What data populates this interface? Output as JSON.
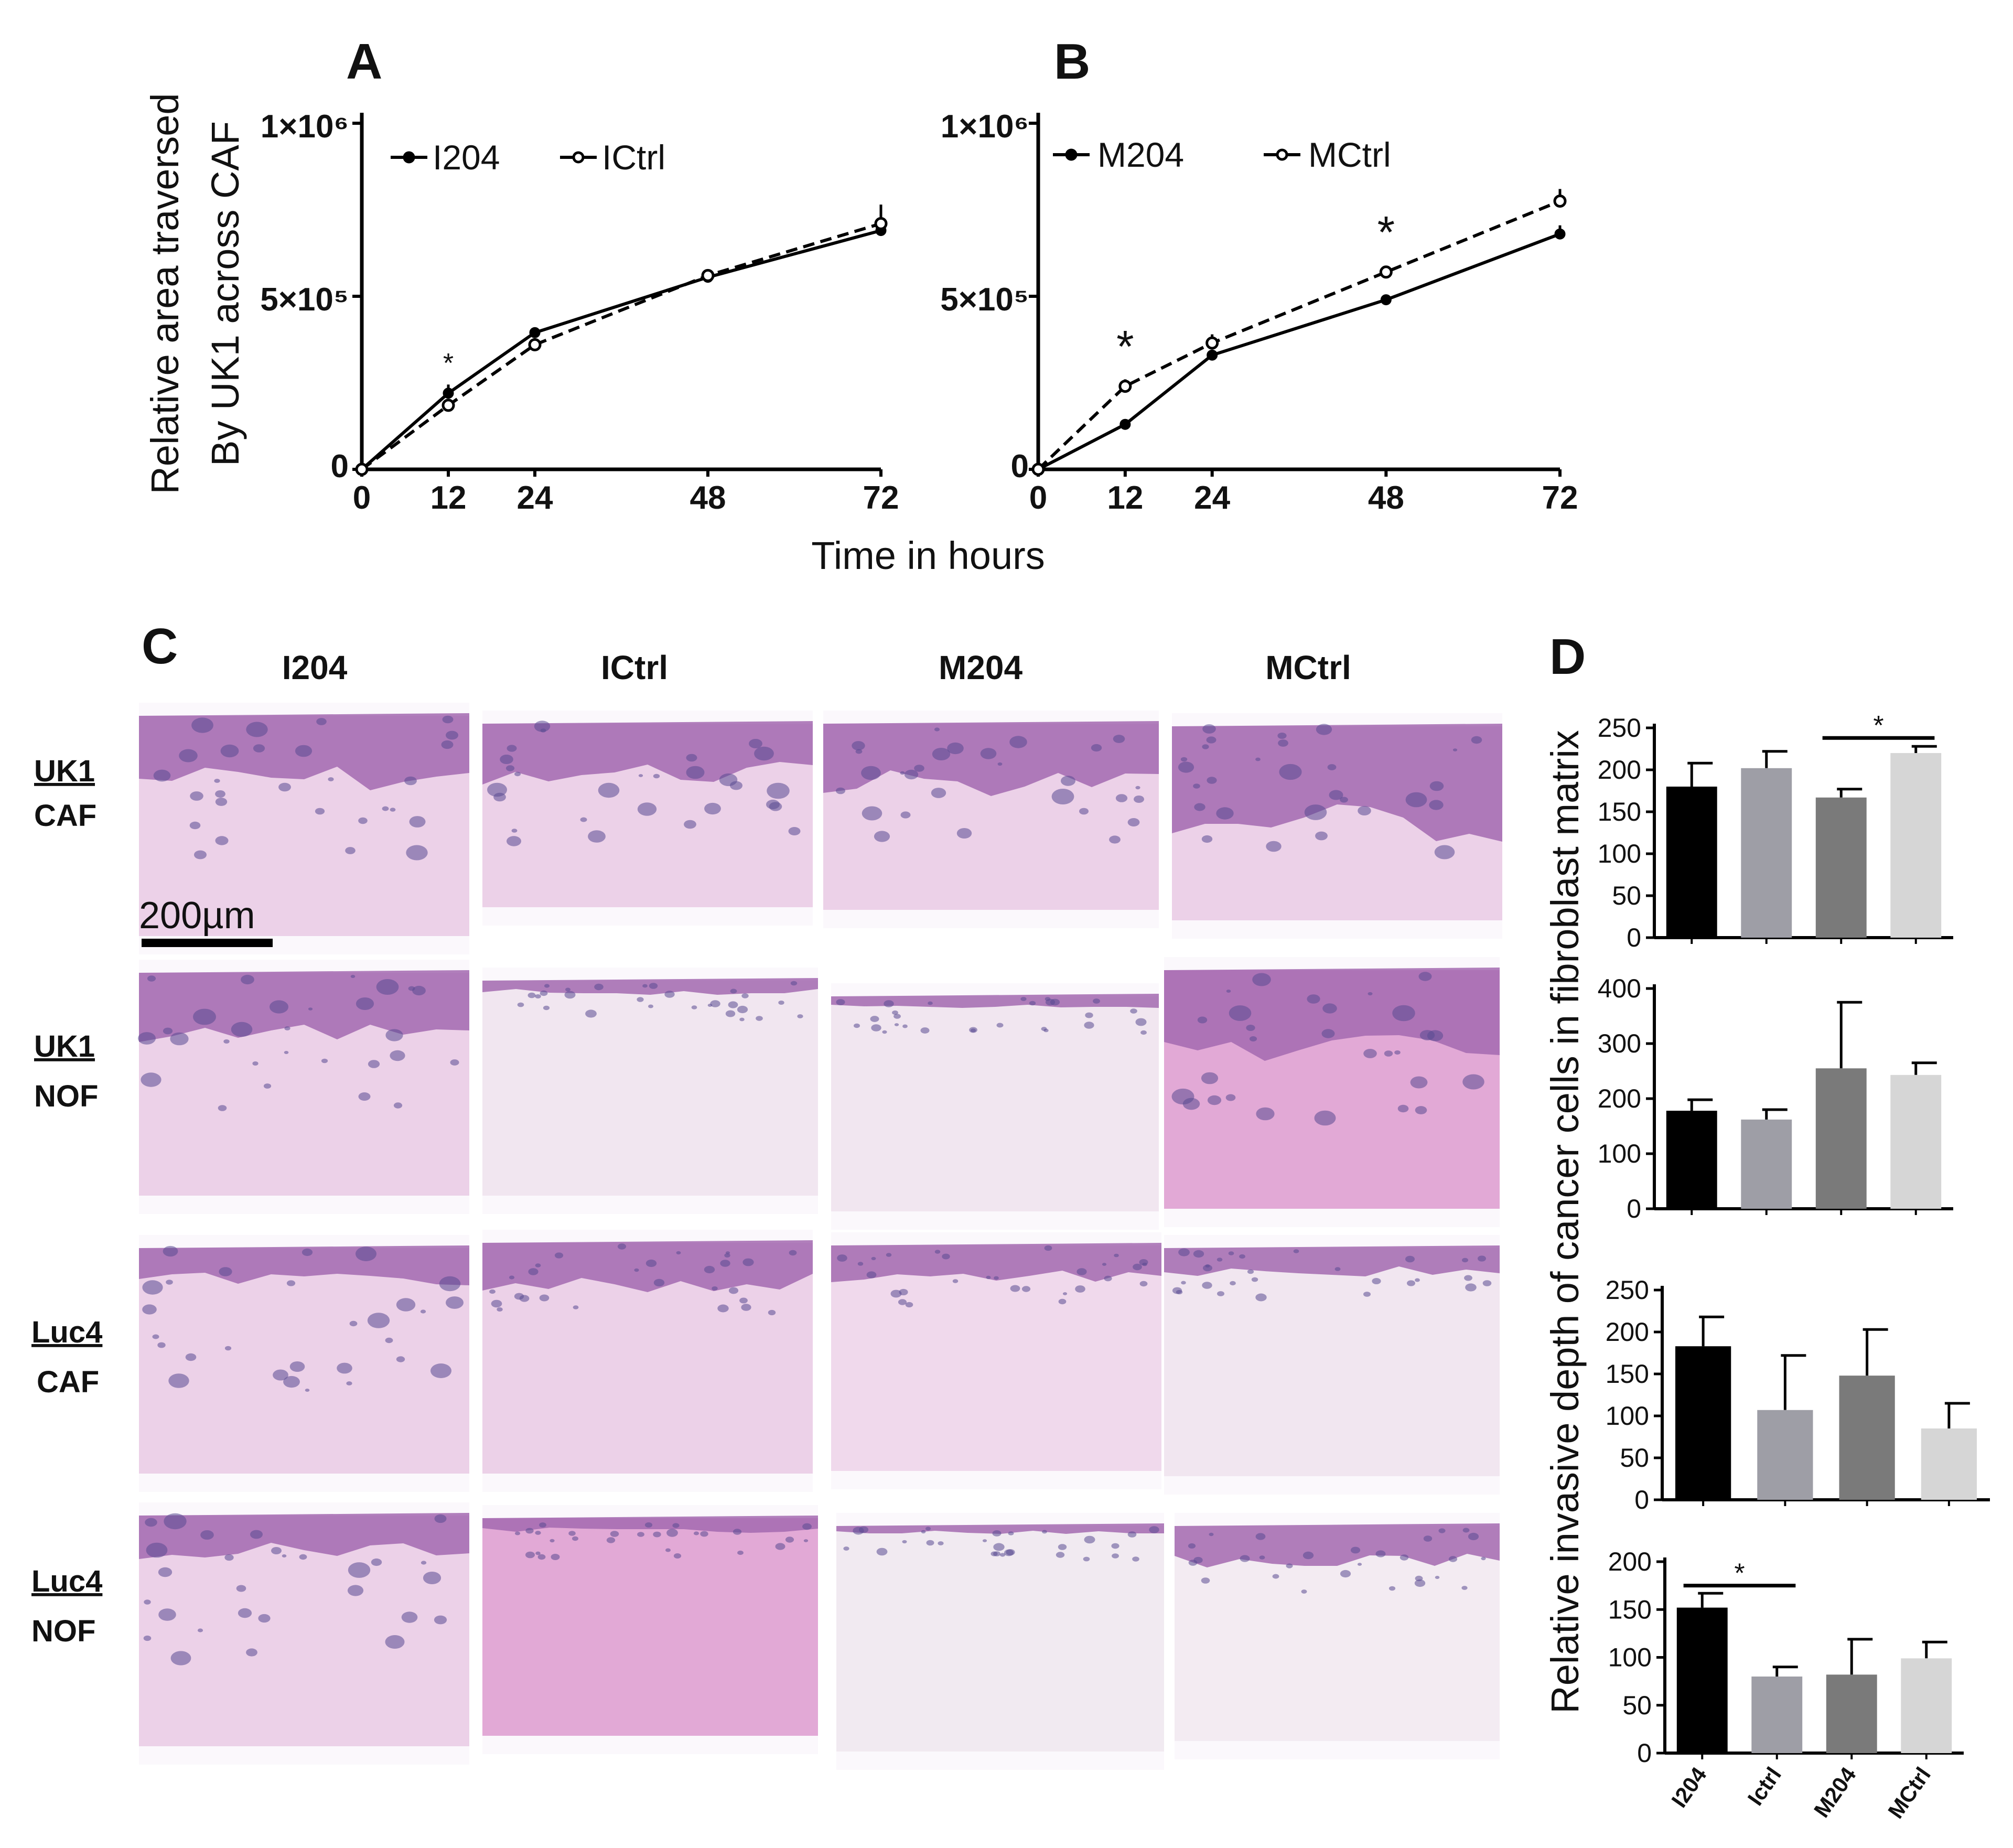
{
  "panel_letters": {
    "a": "A",
    "b": "B",
    "c": "C",
    "d": "D"
  },
  "chart_data": [
    {
      "id": "A",
      "type": "line",
      "ylabel_line1": "Relative area traversed",
      "ylabel_line2": "By UK1 across CAF",
      "xlabel": "Time in hours",
      "x": [
        0,
        12,
        24,
        48,
        72
      ],
      "x_ticks": [
        "0",
        "12",
        "24",
        "48",
        "72"
      ],
      "y_ticks": [
        "0",
        "5×10⁵",
        "1×10⁶"
      ],
      "ylim": [
        0,
        1000000
      ],
      "legend_placement": "top-left",
      "series": [
        {
          "name": "I204",
          "values": [
            0,
            220000,
            395000,
            555000,
            690000
          ],
          "errors": [
            0,
            25000,
            12000,
            12000,
            12000
          ],
          "style": "solid",
          "marker": "filled"
        },
        {
          "name": "ICtrl",
          "values": [
            0,
            185000,
            360000,
            560000,
            710000
          ],
          "errors": [
            0,
            18000,
            15000,
            14000,
            55000
          ],
          "style": "dashed",
          "marker": "open"
        }
      ],
      "annotations": [
        {
          "x": 12,
          "y": 280000,
          "text": "*"
        }
      ]
    },
    {
      "id": "B",
      "type": "line",
      "x": [
        0,
        12,
        24,
        48,
        72
      ],
      "x_ticks": [
        "0",
        "12",
        "24",
        "48",
        "72"
      ],
      "y_ticks": [
        "0",
        "5×10⁵",
        "1×10⁶"
      ],
      "ylim": [
        0,
        1000000
      ],
      "legend_placement": "top-left",
      "series": [
        {
          "name": "M204",
          "values": [
            0,
            130000,
            330000,
            490000,
            680000
          ],
          "errors": [
            0,
            8000,
            8000,
            8000,
            25000
          ],
          "style": "solid",
          "marker": "filled"
        },
        {
          "name": "MCtrl",
          "values": [
            0,
            240000,
            365000,
            570000,
            775000
          ],
          "errors": [
            0,
            20000,
            25000,
            12000,
            35000
          ],
          "style": "dashed",
          "marker": "open"
        }
      ],
      "annotations": [
        {
          "x": 12,
          "y": 310000,
          "text": "*"
        },
        {
          "x": 48,
          "y": 640000,
          "text": "*"
        }
      ]
    },
    {
      "id": "D1",
      "type": "bar",
      "categories": [
        "I204",
        "ICtrl",
        "M204",
        "MCtrl"
      ],
      "values": [
        180,
        202,
        167,
        220
      ],
      "errors": [
        28,
        20,
        10,
        8
      ],
      "colors": [
        "#000000",
        "#9e9ea6",
        "#7a7a7a",
        "#d6d6d6"
      ],
      "ylim": [
        0,
        250
      ],
      "y_ticks": [
        0,
        50,
        100,
        150,
        200,
        250
      ],
      "significance": [
        {
          "from": 2,
          "to": 3,
          "text": "*"
        }
      ]
    },
    {
      "id": "D2",
      "type": "bar",
      "categories": [
        "I204",
        "ICtrl",
        "M204",
        "MCtrl"
      ],
      "values": [
        178,
        162,
        255,
        243
      ],
      "errors": [
        20,
        18,
        120,
        22
      ],
      "colors": [
        "#000000",
        "#9e9ea6",
        "#7a7a7a",
        "#d6d6d6"
      ],
      "ylim": [
        0,
        400
      ],
      "y_ticks": [
        0,
        100,
        200,
        300,
        400
      ]
    },
    {
      "id": "D3",
      "type": "bar",
      "categories": [
        "I204",
        "ICtrl",
        "M204",
        "MCtrl"
      ],
      "values": [
        183,
        107,
        148,
        85
      ],
      "errors": [
        35,
        65,
        55,
        30
      ],
      "colors": [
        "#000000",
        "#9e9ea6",
        "#7a7a7a",
        "#d6d6d6"
      ],
      "ylim": [
        0,
        250
      ],
      "y_ticks": [
        0,
        50,
        100,
        150,
        200,
        250
      ]
    },
    {
      "id": "D4",
      "type": "bar",
      "categories": [
        "I204",
        "ICtrl",
        "M204",
        "MCtrl"
      ],
      "category_labels": [
        "I204",
        "Ictrl",
        "M204",
        "MCtrl"
      ],
      "values": [
        152,
        80,
        82,
        99
      ],
      "errors": [
        15,
        10,
        37,
        17
      ],
      "colors": [
        "#000000",
        "#9e9ea6",
        "#7a7a7a",
        "#d6d6d6"
      ],
      "ylim": [
        0,
        200
      ],
      "y_ticks": [
        0,
        50,
        100,
        150,
        200
      ],
      "significance": [
        {
          "from": 0,
          "to": 1,
          "text": "*"
        }
      ]
    }
  ],
  "panel_d_ylabel": "Relative invasive depth of cancer cells in fibroblast matrix",
  "panel_c": {
    "columns": [
      "I204",
      "ICtrl",
      "M204",
      "MCtrl"
    ],
    "rows": [
      {
        "line1": "UK1",
        "line2": "CAF"
      },
      {
        "line1": "UK1",
        "line2": "NOF"
      },
      {
        "line1": "Luc4",
        "line2": "CAF"
      },
      {
        "line1": "Luc4",
        "line2": "NOF"
      }
    ],
    "scale_bar_label": "200µm",
    "tissue_colors": {
      "epithelium": "#a36ab0",
      "stroma": "#ecd1e8",
      "stroma_dark": "#e2a9d6",
      "nuclei": "#5a4a92",
      "background": "#fbf8fc"
    }
  }
}
